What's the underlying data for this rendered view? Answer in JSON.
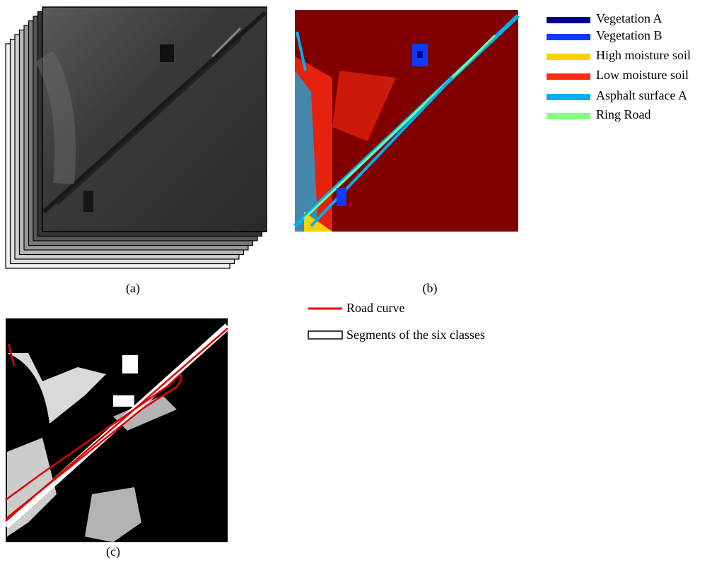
{
  "panels": [
    {
      "label": "(a)"
    },
    {
      "label": "(b)",
      "legend": [
        {
          "name": "Vegetation A",
          "color": "#00008b"
        },
        {
          "name": "Vegetation B",
          "color": "#0a3cff"
        },
        {
          "name": "High moisture soil",
          "color": "#ffd000"
        },
        {
          "name": "Low moisture soil",
          "color": "#ff2a10"
        },
        {
          "name": "Asphalt surface A",
          "color": "#00b0f0"
        },
        {
          "name": "Ring Road",
          "color": "#80ff80"
        }
      ]
    },
    {
      "label": "(c)",
      "legend": [
        {
          "name": "Road curve",
          "color": "#e00000"
        },
        {
          "name": "Segments of the six classes"
        }
      ]
    }
  ]
}
